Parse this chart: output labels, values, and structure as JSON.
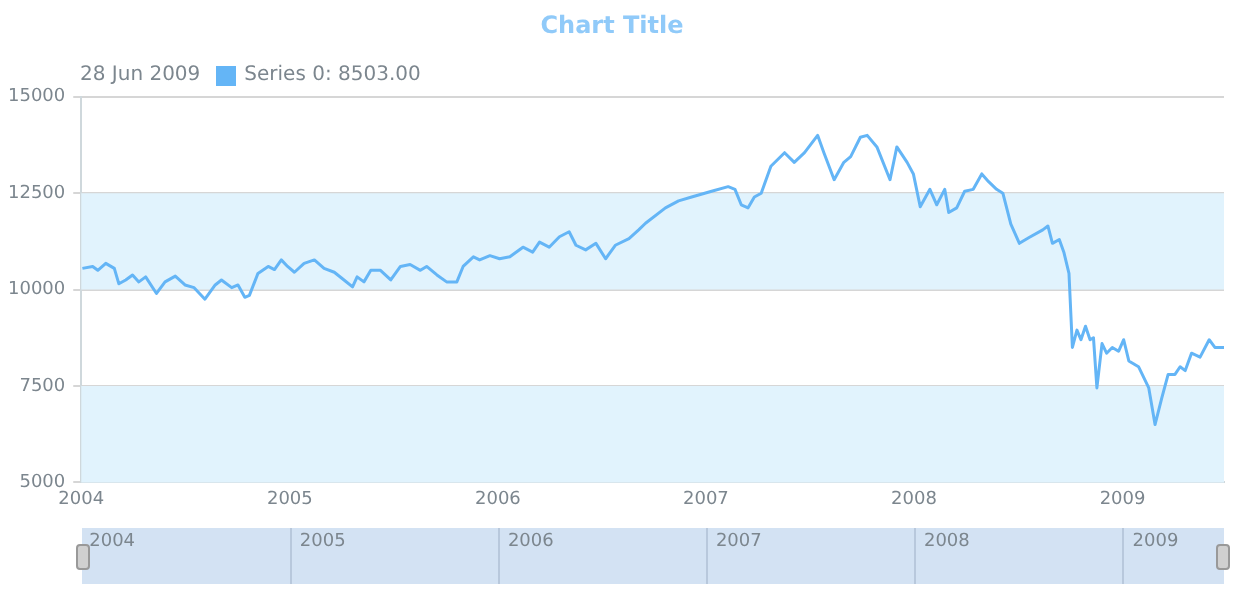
{
  "chart_data": {
    "type": "line",
    "title": "Chart Title",
    "legend": "top left",
    "grid": "y",
    "xlim": [
      "2004-01-01",
      "2009-06-28"
    ],
    "xticks": [
      {
        "value": "2004-01-01",
        "label": "2004"
      },
      {
        "value": "2005-01-01",
        "label": "2005"
      },
      {
        "value": "2006-01-01",
        "label": "2006"
      },
      {
        "value": "2007-01-01",
        "label": "2007"
      },
      {
        "value": "2008-01-01",
        "label": "2008"
      },
      {
        "value": "2009-01-01",
        "label": "2009"
      }
    ],
    "ylim": [
      5000,
      15000
    ],
    "yticks": [
      5000,
      7500,
      10000,
      12500,
      15000
    ],
    "bands": [
      {
        "axis": "y",
        "from": 5000,
        "to": 7500,
        "color": "#e1f3fd"
      },
      {
        "axis": "y",
        "from": 10000,
        "to": 12500,
        "color": "#e1f3fd"
      }
    ],
    "x": [
      "2004-01-03",
      "2004-01-21",
      "2004-01-30",
      "2004-02-13",
      "2004-02-28",
      "2004-03-07",
      "2004-03-19",
      "2004-03-31",
      "2004-04-11",
      "2004-04-23",
      "2004-05-12",
      "2004-05-27",
      "2004-06-14",
      "2004-07-01",
      "2004-07-17",
      "2004-08-05",
      "2004-08-23",
      "2004-09-03",
      "2004-09-21",
      "2004-10-02",
      "2004-10-14",
      "2004-10-22",
      "2004-11-06",
      "2004-11-24",
      "2004-12-05",
      "2004-12-17",
      "2004-12-28",
      "2005-01-09",
      "2005-01-26",
      "2005-02-13",
      "2005-03-02",
      "2005-03-20",
      "2005-04-06",
      "2005-04-21",
      "2005-04-29",
      "2005-05-11",
      "2005-05-23",
      "2005-06-09",
      "2005-06-27",
      "2005-07-14",
      "2005-07-31",
      "2005-08-18",
      "2005-08-29",
      "2005-09-16",
      "2005-10-03",
      "2005-10-21",
      "2005-11-01",
      "2005-11-19",
      "2005-11-30",
      "2005-12-18",
      "2006-01-04",
      "2006-01-22",
      "2006-02-14",
      "2006-03-03",
      "2006-03-15",
      "2006-04-01",
      "2006-04-19",
      "2006-05-06",
      "2006-05-18",
      "2006-06-04",
      "2006-06-22",
      "2006-07-09",
      "2006-07-26",
      "2006-08-19",
      "2006-09-05",
      "2006-09-17",
      "2006-10-22",
      "2006-11-14",
      "2006-12-07",
      "2007-01-11",
      "2007-02-09",
      "2007-02-21",
      "2007-03-04",
      "2007-03-16",
      "2007-03-27",
      "2007-04-08",
      "2007-04-25",
      "2007-05-19",
      "2007-06-05",
      "2007-06-23",
      "2007-07-16",
      "2007-07-27",
      "2007-08-14",
      "2007-08-31",
      "2007-09-12",
      "2007-09-29",
      "2007-10-11",
      "2007-10-28",
      "2007-11-20",
      "2007-12-02",
      "2007-12-20",
      "2007-12-31",
      "2008-01-12",
      "2008-01-29",
      "2008-02-10",
      "2008-02-24",
      "2008-03-02",
      "2008-03-16",
      "2008-03-30",
      "2008-04-14",
      "2008-04-29",
      "2008-05-11",
      "2008-05-25",
      "2008-06-05",
      "2008-06-19",
      "2008-07-04",
      "2008-07-21",
      "2008-08-14",
      "2008-08-23",
      "2008-08-31",
      "2008-09-12",
      "2008-09-20",
      "2008-09-29",
      "2008-10-05",
      "2008-10-13",
      "2008-10-20",
      "2008-10-28",
      "2008-11-05",
      "2008-11-11",
      "2008-11-17",
      "2008-11-26",
      "2008-12-04",
      "2008-12-14",
      "2008-12-25",
      "2009-01-03",
      "2009-01-12",
      "2009-01-29",
      "2009-02-16",
      "2009-02-27",
      "2009-03-11",
      "2009-03-22",
      "2009-04-03",
      "2009-04-12",
      "2009-04-21",
      "2009-05-02",
      "2009-05-17",
      "2009-06-02",
      "2009-06-12",
      "2009-06-28"
    ],
    "legend_title": "28 Jun 2009",
    "series": [
      {
        "name": "Series 0: 8503.00",
        "color": "#64b5f6",
        "values": [
          10550,
          10600,
          10500,
          10680,
          10550,
          10150,
          10250,
          10380,
          10200,
          10330,
          9900,
          10200,
          10350,
          10120,
          10050,
          9750,
          10120,
          10250,
          10050,
          10120,
          9800,
          9850,
          10420,
          10600,
          10520,
          10770,
          10600,
          10450,
          10680,
          10770,
          10550,
          10450,
          10250,
          10070,
          10330,
          10200,
          10500,
          10500,
          10250,
          10600,
          10650,
          10500,
          10600,
          10380,
          10200,
          10200,
          10600,
          10850,
          10770,
          10880,
          10800,
          10850,
          11100,
          10970,
          11230,
          11100,
          11370,
          11500,
          11150,
          11030,
          11200,
          10800,
          11150,
          11320,
          11550,
          11720,
          12120,
          12300,
          12400,
          12550,
          12670,
          12600,
          12200,
          12120,
          12400,
          12500,
          13200,
          13550,
          13300,
          13550,
          14000,
          13550,
          12850,
          13300,
          13450,
          13950,
          14000,
          13700,
          12850,
          13700,
          13300,
          13000,
          12150,
          12600,
          12200,
          12600,
          12000,
          12120,
          12550,
          12600,
          13000,
          12800,
          12600,
          12500,
          11700,
          11200,
          11350,
          11550,
          11650,
          11200,
          11300,
          10970,
          10420,
          8500,
          8950,
          8700,
          9050,
          8700,
          8750,
          7450,
          8600,
          8350,
          8500,
          8400,
          8700,
          8150,
          8000,
          7450,
          6500,
          7200,
          7800,
          7800,
          8000,
          7900,
          8350,
          8250,
          8700,
          8500,
          8500
        ]
      }
    ]
  }
}
